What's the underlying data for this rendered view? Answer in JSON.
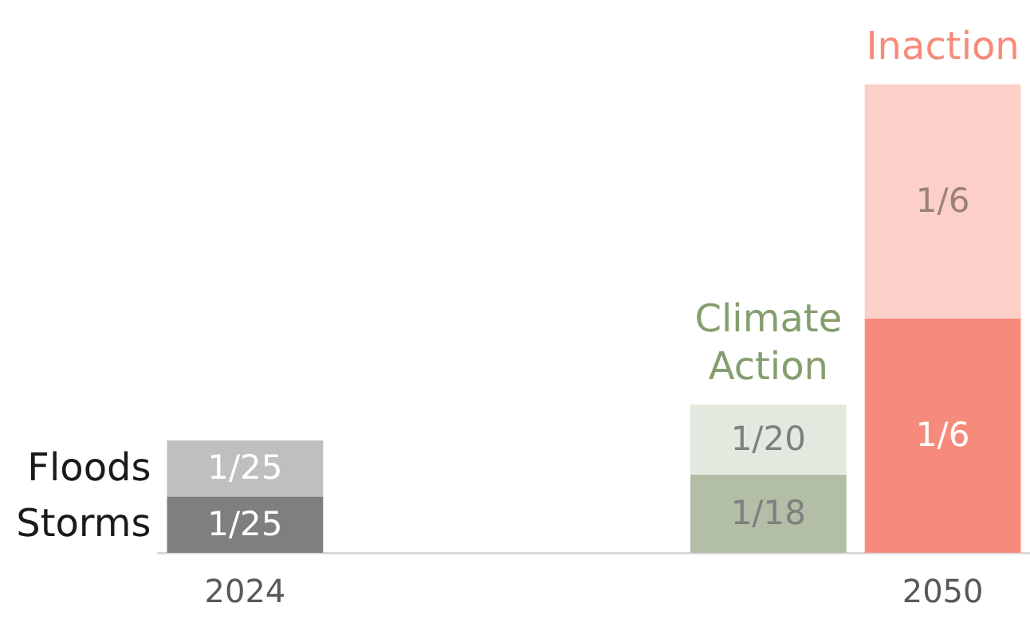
{
  "chart_data": {
    "type": "bar",
    "stacked": true,
    "categories": [
      "2024",
      null,
      null,
      null,
      "2050"
    ],
    "series": [
      {
        "name": "Storms",
        "colors": [
          "#7f7f7f",
          null,
          null,
          "#b2bfa6",
          "#f78b7b"
        ],
        "values": [
          0.04,
          null,
          null,
          0.0556,
          0.1667
        ],
        "value_labels": [
          "1/25",
          null,
          null,
          "1/18",
          "1/6"
        ]
      },
      {
        "name": "Floods",
        "colors": [
          "#bfbfbf",
          null,
          null,
          "#e3e9df",
          "#fccfc9"
        ],
        "values": [
          0.04,
          null,
          null,
          0.05,
          0.1667
        ],
        "value_labels": [
          "1/25",
          null,
          null,
          "1/20",
          "1/6"
        ]
      }
    ],
    "annotations": [
      {
        "text": "Climate Action",
        "y": 0.1056
      },
      {
        "text": "Inaction",
        "y": 0.3333
      }
    ],
    "tick_labels": "x",
    "grid": false,
    "legend": false
  }
}
